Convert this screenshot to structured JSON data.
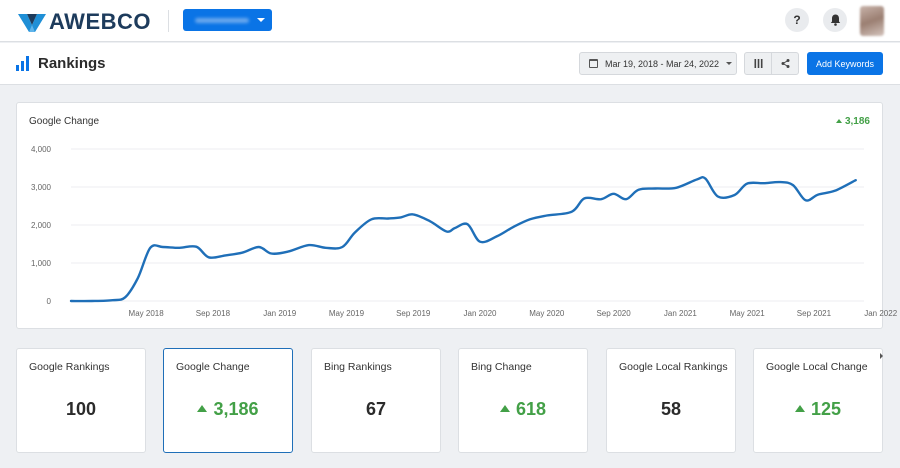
{
  "header": {
    "logo_text": "AWEBCO",
    "account_selector": "",
    "help_label": "?"
  },
  "page": {
    "title": "Rankings",
    "date_range": "Mar 19, 2018 - Mar 24, 2022",
    "add_keywords_label": "Add Keywords"
  },
  "chart_card": {
    "title": "Google Change",
    "change_value": "3,186"
  },
  "chart_data": {
    "type": "line",
    "title": "Google Change",
    "xlabel": "",
    "ylabel": "",
    "ylim": [
      0,
      4000
    ],
    "yticks": [
      0,
      1000,
      2000,
      3000,
      4000
    ],
    "ytick_labels": [
      "0",
      "1,000",
      "2,000",
      "3,000",
      "4,000"
    ],
    "xticks": [
      "May 2018",
      "Sep 2018",
      "Jan 2019",
      "May 2019",
      "Sep 2019",
      "Jan 2020",
      "May 2020",
      "Sep 2020",
      "Jan 2021",
      "May 2021",
      "Sep 2021",
      "Jan 2022"
    ],
    "grid": true,
    "color": "#1f6fb8",
    "series": [
      {
        "values": [
          [
            0.0,
            0
          ],
          [
            0.5,
            0
          ],
          [
            1.0,
            20
          ],
          [
            1.3,
            100
          ],
          [
            1.6,
            600
          ],
          [
            1.9,
            1400
          ],
          [
            2.2,
            1420
          ],
          [
            2.6,
            1400
          ],
          [
            3.0,
            1430
          ],
          [
            3.3,
            1150
          ],
          [
            3.7,
            1200
          ],
          [
            4.1,
            1270
          ],
          [
            4.5,
            1420
          ],
          [
            4.8,
            1250
          ],
          [
            5.2,
            1300
          ],
          [
            5.7,
            1470
          ],
          [
            6.1,
            1400
          ],
          [
            6.5,
            1420
          ],
          [
            6.8,
            1800
          ],
          [
            7.2,
            2150
          ],
          [
            7.6,
            2170
          ],
          [
            7.9,
            2200
          ],
          [
            8.2,
            2280
          ],
          [
            8.6,
            2100
          ],
          [
            9.0,
            1830
          ],
          [
            9.2,
            1920
          ],
          [
            9.5,
            2020
          ],
          [
            9.8,
            1560
          ],
          [
            10.2,
            1700
          ],
          [
            10.6,
            1950
          ],
          [
            11.0,
            2150
          ],
          [
            11.4,
            2250
          ],
          [
            12.0,
            2350
          ],
          [
            12.3,
            2700
          ],
          [
            12.7,
            2680
          ],
          [
            13.0,
            2820
          ],
          [
            13.3,
            2680
          ],
          [
            13.6,
            2930
          ],
          [
            14.0,
            2960
          ],
          [
            14.5,
            2980
          ],
          [
            15.0,
            3200
          ],
          [
            15.2,
            3220
          ],
          [
            15.5,
            2750
          ],
          [
            15.9,
            2790
          ],
          [
            16.2,
            3090
          ],
          [
            16.6,
            3100
          ],
          [
            17.0,
            3130
          ],
          [
            17.3,
            3050
          ],
          [
            17.6,
            2650
          ],
          [
            17.9,
            2800
          ],
          [
            18.3,
            2900
          ],
          [
            18.8,
            3180
          ]
        ]
      }
    ]
  },
  "stats": [
    {
      "label": "Google Rankings",
      "value": "100",
      "trend": ""
    },
    {
      "label": "Google Change",
      "value": "3,186",
      "trend": "up"
    },
    {
      "label": "Bing Rankings",
      "value": "67",
      "trend": ""
    },
    {
      "label": "Bing Change",
      "value": "618",
      "trend": "up"
    },
    {
      "label": "Google Local Rankings",
      "value": "58",
      "trend": ""
    },
    {
      "label": "Google Local Change",
      "value": "125",
      "trend": "up"
    }
  ]
}
